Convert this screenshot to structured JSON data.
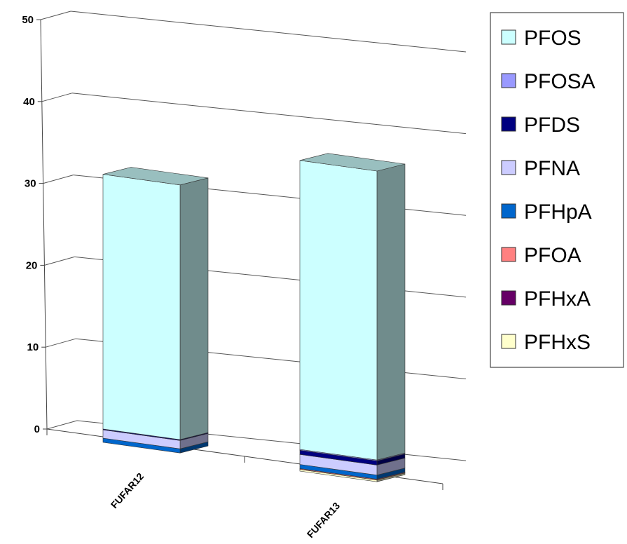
{
  "chart_data": {
    "type": "bar",
    "stacked": true,
    "view": "3d",
    "categories": [
      "FUFAR12",
      "FUFAR13"
    ],
    "series": [
      {
        "name": "PFHxS",
        "color": "#ffffcc",
        "values": [
          0,
          0.2
        ]
      },
      {
        "name": "PFHxA",
        "color": "#660066",
        "values": [
          0,
          0
        ]
      },
      {
        "name": "PFOA",
        "color": "#ff8080",
        "values": [
          0,
          0.1
        ]
      },
      {
        "name": "PFHpA",
        "color": "#0066cc",
        "values": [
          0.5,
          0.5
        ]
      },
      {
        "name": "PFNA",
        "color": "#ccccff",
        "values": [
          1.0,
          1.2
        ]
      },
      {
        "name": "PFDS",
        "color": "#000080",
        "values": [
          0.1,
          0.5
        ]
      },
      {
        "name": "PFOSA",
        "color": "#9999ff",
        "values": [
          0,
          0.1
        ]
      },
      {
        "name": "PFOS",
        "color": "#ccffff",
        "values": [
          30.5,
          34.6
        ]
      }
    ],
    "legend_order": [
      "PFOS",
      "PFOSA",
      "PFDS",
      "PFNA",
      "PFHpA",
      "PFOA",
      "PFHxA",
      "PFHxS"
    ],
    "legend_position": "right",
    "yticks": [
      "0",
      "10",
      "20",
      "30",
      "40",
      "50"
    ],
    "ylim": [
      0,
      50
    ],
    "grid": true
  }
}
